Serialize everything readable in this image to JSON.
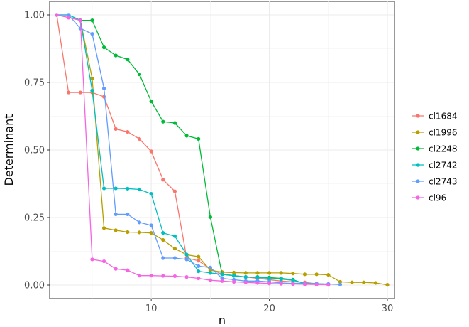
{
  "chart_data": {
    "type": "line",
    "title": "",
    "xlabel": "n",
    "ylabel": "Determinant",
    "xlim": [
      1.4,
      30.6
    ],
    "ylim": [
      -0.05,
      1.05
    ],
    "x_ticks": [
      10,
      20,
      30
    ],
    "y_ticks": [
      0.0,
      0.25,
      0.5,
      0.75,
      1.0
    ],
    "x_tick_labels": [
      "10",
      "20",
      "30"
    ],
    "y_tick_labels": [
      "0.00",
      "0.25",
      "0.50",
      "0.75",
      "1.00"
    ],
    "grid": true,
    "legend_position": "right",
    "series": [
      {
        "name": "cl1684",
        "color": "#F8766D",
        "x": [
          2,
          3,
          4,
          5,
          6,
          7,
          8,
          9,
          10,
          11,
          12,
          13,
          14,
          15,
          16,
          17,
          18,
          19,
          20,
          21,
          22,
          23,
          24,
          25
        ],
        "y": [
          1.0,
          0.713,
          0.713,
          0.713,
          0.697,
          0.578,
          0.567,
          0.541,
          0.495,
          0.39,
          0.347,
          0.1,
          0.09,
          0.06,
          0.04,
          0.035,
          0.03,
          0.025,
          0.02,
          0.015,
          0.012,
          0.01,
          0.005,
          0.003
        ]
      },
      {
        "name": "cl1996",
        "color": "#B79F00",
        "x": [
          2,
          3,
          4,
          5,
          6,
          7,
          8,
          9,
          10,
          11,
          12,
          13,
          14,
          15,
          16,
          17,
          18,
          19,
          20,
          21,
          22,
          23,
          24,
          25,
          26,
          27,
          28,
          29,
          30
        ],
        "y": [
          1.0,
          0.99,
          0.98,
          0.765,
          0.211,
          0.203,
          0.196,
          0.195,
          0.193,
          0.167,
          0.135,
          0.112,
          0.105,
          0.055,
          0.048,
          0.046,
          0.045,
          0.045,
          0.045,
          0.045,
          0.043,
          0.04,
          0.04,
          0.038,
          0.012,
          0.01,
          0.01,
          0.008,
          0.001
        ]
      },
      {
        "name": "cl2248",
        "color": "#00BA38",
        "x": [
          2,
          3,
          4,
          5,
          6,
          7,
          8,
          9,
          10,
          11,
          12,
          13,
          14,
          15,
          16,
          17,
          18,
          19,
          20,
          21,
          22,
          23,
          24,
          25
        ],
        "y": [
          1.0,
          1.0,
          0.98,
          0.98,
          0.88,
          0.85,
          0.835,
          0.78,
          0.68,
          0.605,
          0.6,
          0.553,
          0.541,
          0.252,
          0.04,
          0.035,
          0.03,
          0.03,
          0.028,
          0.025,
          0.02,
          0.005,
          0.004,
          0.003
        ]
      },
      {
        "name": "cl2742",
        "color": "#00BFC4",
        "x": [
          2,
          3,
          4,
          5,
          6,
          7,
          8,
          9,
          10,
          11,
          12,
          13,
          14,
          15,
          16,
          17,
          18,
          19,
          20,
          21,
          22,
          23,
          24,
          25
        ],
        "y": [
          1.0,
          1.0,
          0.98,
          0.72,
          0.358,
          0.358,
          0.357,
          0.354,
          0.338,
          0.193,
          0.181,
          0.113,
          0.051,
          0.045,
          0.04,
          0.035,
          0.03,
          0.028,
          0.025,
          0.022,
          0.018,
          0.006,
          0.005,
          0.003
        ]
      },
      {
        "name": "cl2743",
        "color": "#619CFF",
        "x": [
          2,
          3,
          4,
          5,
          6,
          7,
          8,
          9,
          10,
          11,
          12,
          13,
          14,
          15,
          16,
          17,
          18,
          19,
          20,
          21,
          22,
          23,
          24,
          25,
          26
        ],
        "y": [
          1.0,
          1.0,
          0.95,
          0.93,
          0.728,
          0.262,
          0.262,
          0.232,
          0.221,
          0.1,
          0.1,
          0.095,
          0.07,
          0.065,
          0.025,
          0.02,
          0.015,
          0.015,
          0.012,
          0.008,
          0.006,
          0.006,
          0.005,
          0.004,
          0.002
        ]
      },
      {
        "name": "cl96",
        "color": "#F564E3",
        "x": [
          2,
          3,
          4,
          5,
          6,
          7,
          8,
          9,
          10,
          11,
          12,
          13,
          14,
          15,
          16,
          17,
          18,
          19,
          20,
          21,
          22,
          23,
          24,
          25
        ],
        "y": [
          1.0,
          0.99,
          0.98,
          0.095,
          0.088,
          0.06,
          0.055,
          0.035,
          0.035,
          0.034,
          0.033,
          0.03,
          0.025,
          0.018,
          0.015,
          0.012,
          0.01,
          0.008,
          0.006,
          0.005,
          0.004,
          0.003,
          0.002,
          0.001
        ]
      }
    ]
  }
}
